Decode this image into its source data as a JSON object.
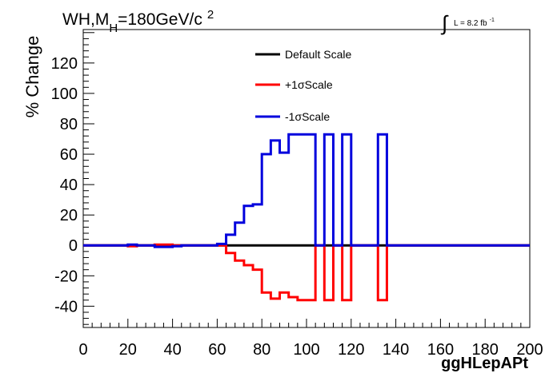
{
  "title": {
    "prefix": "WH,M",
    "subscript": "H",
    "suffix": "=180GeV/c",
    "superscript": "2"
  },
  "luminosity": {
    "integral_sign": "∫",
    "text": "L = 8.2 fb",
    "superscript": "-1"
  },
  "chart_data": {
    "type": "line",
    "style": "step",
    "xlabel": "ggHLepAPt",
    "ylabel": "% Change",
    "xlim": [
      0,
      200
    ],
    "ylim": [
      -54,
      142
    ],
    "x_ticks": [
      0,
      20,
      40,
      60,
      80,
      100,
      120,
      140,
      160,
      180,
      200
    ],
    "y_ticks": [
      -40,
      -20,
      0,
      20,
      40,
      60,
      80,
      100,
      120
    ],
    "bin_edges": [
      0,
      4,
      8,
      12,
      16,
      20,
      24,
      28,
      32,
      36,
      40,
      44,
      48,
      52,
      56,
      60,
      64,
      68,
      72,
      76,
      80,
      84,
      88,
      92,
      96,
      100,
      104,
      108,
      112,
      116,
      120,
      124,
      128,
      132,
      136,
      140,
      144,
      148,
      152,
      156,
      160,
      164,
      168,
      172,
      176,
      180,
      184,
      188,
      192,
      196,
      200
    ],
    "series": [
      {
        "name": "Default Scale",
        "color": "#000000",
        "values": [
          0,
          0,
          0,
          0,
          0,
          0,
          0,
          0,
          0,
          0,
          0,
          0,
          0,
          0,
          0,
          0,
          0,
          0,
          0,
          0,
          0,
          0,
          0,
          0,
          0,
          0,
          0,
          0,
          0,
          0,
          0,
          0,
          0,
          0,
          0,
          0,
          0,
          0,
          0,
          0,
          0,
          0,
          0,
          0,
          0,
          0,
          0,
          0,
          0,
          0
        ]
      },
      {
        "name": "+1σScale",
        "color": "#ff0000",
        "values": [
          0,
          0,
          0,
          0,
          0,
          -0.5,
          0,
          0,
          0.5,
          0.5,
          0,
          0,
          0,
          0,
          0,
          0,
          -5,
          -10,
          -13,
          -16,
          -31,
          -35,
          -31,
          -34,
          -36,
          -36,
          0,
          -36,
          0,
          -36,
          0,
          0,
          0,
          -36,
          0,
          0,
          0,
          0,
          0,
          0,
          0,
          0,
          0,
          0,
          0,
          0,
          0,
          0,
          0,
          0
        ]
      },
      {
        "name": "-1σScale",
        "color": "#0000dd",
        "values": [
          0,
          0,
          0,
          0,
          0,
          0.5,
          0,
          0,
          -1,
          -1,
          -0.5,
          0,
          0,
          0,
          0,
          1,
          7,
          15,
          26,
          27,
          60,
          69,
          61,
          73,
          73,
          73,
          0,
          73,
          0,
          73,
          0,
          0,
          0,
          73,
          0,
          0,
          0,
          0,
          0,
          0,
          0,
          0,
          0,
          0,
          0,
          0,
          0,
          0,
          0,
          0
        ]
      }
    ]
  }
}
